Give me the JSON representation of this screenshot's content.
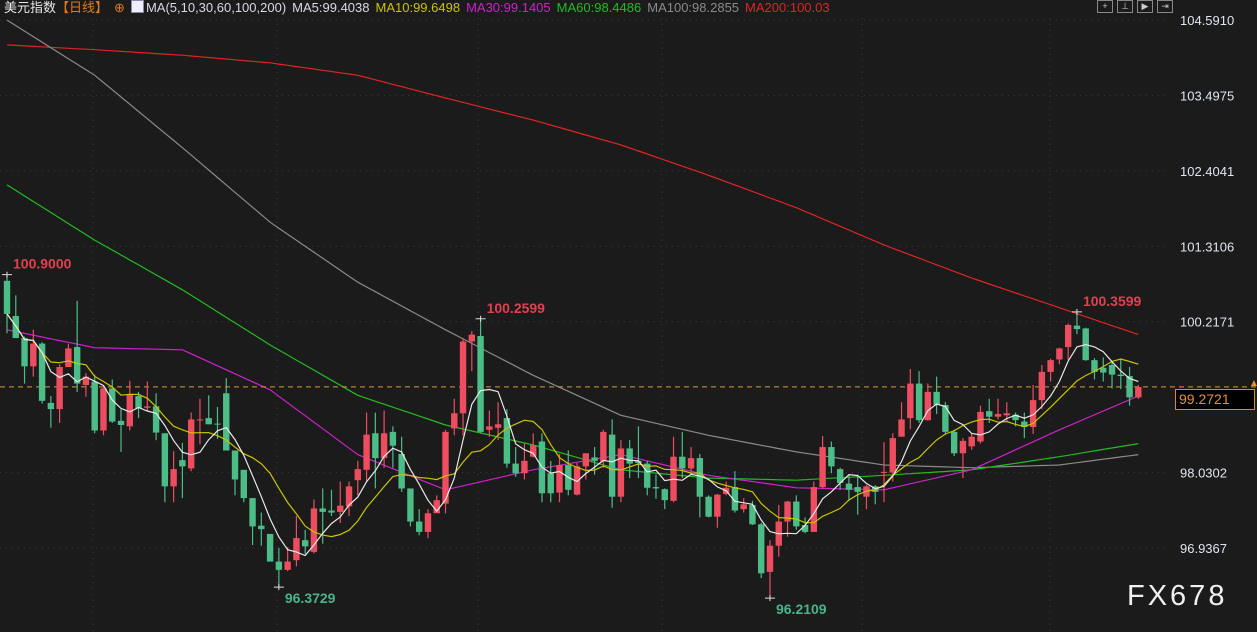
{
  "header": {
    "title": "美元指数",
    "period": "【日线】",
    "ma_params": "MA(5,10,30,60,100,200)",
    "ma5": "MA5:99.4038",
    "ma10": "MA10:99.6498",
    "ma30": "MA30:99.1405",
    "ma60": "MA60:98.4486",
    "ma100": "MA100:98.2855",
    "ma200": "MA200:100.03",
    "icons": [
      "crosshair-icon",
      "zoom-fit-icon",
      "play-icon",
      "jump-end-icon"
    ]
  },
  "colors": {
    "background": "#1b1b1b",
    "up": "#ee4d5f",
    "down": "#4dbd88",
    "ma5": "#e8e8e8",
    "ma10": "#c9c400",
    "ma30": "#cc22cc",
    "ma60": "#22bb22",
    "ma100": "#8a8a8a",
    "ma200": "#e02424",
    "current_price": "#e3922e"
  },
  "watermark": "FX678",
  "chart_data": {
    "type": "candlestick",
    "y_ticks": [
      "104.5910",
      "103.4975",
      "102.4041",
      "101.3106",
      "100.2171",
      "98.0302",
      "96.9367"
    ],
    "ylim": [
      96.0,
      104.8
    ],
    "grid": true,
    "current_price": "99.2721",
    "annotations": [
      {
        "label": "100.9000",
        "index": 0,
        "kind": "high"
      },
      {
        "label": "96.3729",
        "index": 31,
        "kind": "low"
      },
      {
        "label": "100.2599",
        "index": 54,
        "kind": "high"
      },
      {
        "label": "96.2109",
        "index": 87,
        "kind": "low"
      },
      {
        "label": "100.3599",
        "index": 122,
        "kind": "high"
      }
    ],
    "candles_ohlc": [
      [
        100.81,
        100.9,
        100.05,
        100.33
      ],
      [
        100.3,
        100.6,
        99.98,
        99.98
      ],
      [
        99.98,
        100.0,
        99.32,
        99.57
      ],
      [
        99.57,
        100.1,
        99.42,
        99.9
      ],
      [
        99.9,
        99.92,
        99.03,
        99.07
      ],
      [
        99.04,
        99.14,
        98.68,
        98.95
      ],
      [
        98.95,
        99.6,
        98.75,
        99.56
      ],
      [
        99.56,
        99.9,
        99.56,
        99.83
      ],
      [
        99.85,
        100.52,
        99.2,
        99.32
      ],
      [
        99.3,
        99.47,
        99.13,
        99.42
      ],
      [
        99.35,
        99.45,
        98.6,
        98.64
      ],
      [
        98.64,
        99.28,
        98.57,
        99.25
      ],
      [
        99.25,
        99.38,
        98.75,
        98.77
      ],
      [
        98.78,
        98.95,
        98.33,
        98.72
      ],
      [
        98.7,
        99.36,
        98.64,
        99.17
      ],
      [
        99.14,
        99.2,
        98.82,
        98.96
      ],
      [
        98.97,
        99.35,
        98.93,
        98.99
      ],
      [
        98.99,
        99.18,
        98.5,
        98.61
      ],
      [
        98.6,
        98.6,
        97.6,
        97.83
      ],
      [
        97.83,
        98.34,
        97.6,
        98.08
      ],
      [
        98.21,
        98.46,
        97.66,
        98.12
      ],
      [
        98.09,
        98.9,
        98.05,
        98.8
      ],
      [
        98.79,
        99.1,
        98.44,
        98.8
      ],
      [
        98.82,
        99.15,
        98.73,
        98.73
      ],
      [
        98.74,
        98.98,
        98.52,
        98.73
      ],
      [
        99.18,
        99.4,
        98.35,
        98.35
      ],
      [
        98.35,
        98.35,
        97.7,
        97.93
      ],
      [
        98.07,
        98.07,
        97.6,
        97.66
      ],
      [
        97.66,
        97.66,
        96.98,
        97.25
      ],
      [
        97.26,
        97.45,
        96.97,
        97.21
      ],
      [
        97.14,
        97.14,
        96.74,
        96.74
      ],
      [
        96.74,
        96.94,
        96.37,
        96.62
      ],
      [
        96.62,
        96.95,
        96.6,
        96.74
      ],
      [
        96.76,
        97.4,
        96.67,
        97.08
      ],
      [
        97.05,
        97.2,
        96.85,
        96.96
      ],
      [
        96.88,
        97.64,
        96.86,
        97.51
      ],
      [
        97.51,
        97.8,
        97.0,
        97.46
      ],
      [
        97.48,
        97.78,
        97.4,
        97.45
      ],
      [
        97.46,
        97.9,
        97.3,
        97.55
      ],
      [
        97.54,
        97.9,
        97.4,
        97.83
      ],
      [
        97.92,
        98.2,
        97.7,
        98.08
      ],
      [
        98.07,
        98.9,
        97.9,
        98.58
      ],
      [
        98.6,
        98.9,
        97.8,
        98.24
      ],
      [
        98.24,
        98.93,
        98.1,
        98.6
      ],
      [
        98.62,
        98.7,
        98.1,
        98.42
      ],
      [
        98.3,
        98.55,
        97.75,
        97.8
      ],
      [
        97.8,
        97.8,
        97.25,
        97.32
      ],
      [
        97.32,
        97.5,
        97.12,
        97.17
      ],
      [
        97.17,
        97.5,
        97.08,
        97.44
      ],
      [
        97.44,
        97.7,
        97.45,
        97.63
      ],
      [
        97.58,
        98.65,
        97.44,
        98.62
      ],
      [
        98.67,
        99.1,
        98.57,
        98.89
      ],
      [
        98.89,
        99.98,
        98.57,
        99.93
      ],
      [
        99.93,
        100.08,
        99.5,
        100.03
      ],
      [
        100.01,
        100.26,
        98.6,
        98.62
      ],
      [
        98.65,
        98.93,
        98.55,
        98.7
      ],
      [
        98.68,
        99.05,
        98.5,
        98.73
      ],
      [
        98.82,
        98.95,
        98.1,
        98.16
      ],
      [
        98.16,
        98.4,
        97.97,
        98.02
      ],
      [
        98.02,
        98.45,
        97.93,
        98.2
      ],
      [
        98.26,
        98.6,
        98.25,
        98.43
      ],
      [
        98.48,
        98.6,
        97.6,
        97.73
      ],
      [
        98.02,
        98.2,
        97.6,
        97.73
      ],
      [
        97.74,
        98.3,
        97.6,
        98.14
      ],
      [
        98.14,
        98.35,
        97.7,
        97.78
      ],
      [
        97.71,
        98.17,
        97.7,
        98.12
      ],
      [
        98.12,
        98.3,
        97.93,
        98.31
      ],
      [
        98.25,
        98.4,
        98.0,
        98.2
      ],
      [
        98.19,
        98.65,
        98.1,
        98.62
      ],
      [
        98.58,
        98.8,
        97.52,
        97.68
      ],
      [
        97.68,
        98.5,
        97.6,
        98.38
      ],
      [
        98.38,
        98.5,
        97.95,
        98.16
      ],
      [
        98.2,
        98.7,
        97.95,
        98.17
      ],
      [
        98.16,
        98.2,
        97.7,
        97.81
      ],
      [
        97.82,
        98.0,
        97.65,
        97.8
      ],
      [
        97.79,
        97.8,
        97.5,
        97.63
      ],
      [
        97.62,
        98.55,
        97.6,
        98.26
      ],
      [
        98.26,
        98.62,
        97.95,
        98.09
      ],
      [
        98.09,
        98.4,
        98.0,
        98.24
      ],
      [
        98.24,
        98.3,
        97.38,
        97.68
      ],
      [
        97.68,
        97.7,
        97.38,
        97.39
      ],
      [
        97.39,
        97.72,
        97.23,
        97.71
      ],
      [
        97.72,
        97.9,
        97.7,
        97.81
      ],
      [
        97.82,
        98.05,
        97.45,
        97.48
      ],
      [
        97.5,
        97.66,
        97.45,
        97.57
      ],
      [
        97.56,
        97.62,
        97.27,
        97.28
      ],
      [
        97.28,
        97.3,
        96.5,
        96.57
      ],
      [
        96.59,
        97.05,
        96.21,
        96.97
      ],
      [
        96.97,
        97.56,
        96.81,
        97.32
      ],
      [
        97.32,
        97.62,
        97.1,
        97.61
      ],
      [
        97.61,
        97.7,
        97.2,
        97.25
      ],
      [
        97.27,
        97.38,
        97.15,
        97.17
      ],
      [
        97.17,
        97.9,
        97.17,
        97.82
      ],
      [
        97.82,
        98.56,
        97.8,
        98.4
      ],
      [
        98.4,
        98.48,
        98.02,
        98.12
      ],
      [
        98.08,
        98.1,
        97.78,
        97.88
      ],
      [
        97.87,
        98.0,
        97.62,
        97.78
      ],
      [
        97.82,
        98.0,
        97.42,
        97.75
      ],
      [
        97.68,
        97.85,
        97.5,
        97.83
      ],
      [
        97.83,
        97.85,
        97.57,
        97.75
      ],
      [
        98.03,
        98.47,
        97.6,
        98.04
      ],
      [
        98.03,
        98.6,
        97.9,
        98.53
      ],
      [
        98.55,
        99.05,
        98.55,
        98.8
      ],
      [
        98.82,
        99.53,
        98.66,
        99.32
      ],
      [
        99.32,
        99.5,
        98.75,
        98.79
      ],
      [
        98.79,
        99.32,
        98.78,
        99.2
      ],
      [
        99.2,
        99.42,
        98.88,
        99.01
      ],
      [
        99.01,
        99.05,
        98.58,
        98.62
      ],
      [
        98.62,
        98.65,
        98.27,
        98.31
      ],
      [
        98.31,
        98.53,
        97.95,
        98.49
      ],
      [
        98.41,
        98.6,
        98.36,
        98.55
      ],
      [
        98.48,
        99.0,
        98.45,
        98.91
      ],
      [
        98.92,
        99.1,
        98.75,
        98.84
      ],
      [
        98.84,
        99.1,
        98.8,
        98.88
      ],
      [
        98.86,
        99.05,
        98.77,
        98.89
      ],
      [
        98.87,
        98.9,
        98.7,
        98.79
      ],
      [
        98.77,
        98.9,
        98.53,
        98.69
      ],
      [
        98.69,
        99.3,
        98.59,
        99.08
      ],
      [
        99.08,
        99.59,
        98.95,
        99.49
      ],
      [
        99.49,
        99.68,
        99.35,
        99.66
      ],
      [
        99.67,
        99.84,
        99.6,
        99.83
      ],
      [
        99.85,
        100.19,
        99.66,
        100.17
      ],
      [
        100.16,
        100.36,
        100.04,
        100.11
      ],
      [
        100.12,
        100.13,
        99.65,
        99.66
      ],
      [
        99.66,
        99.69,
        99.38,
        99.49
      ],
      [
        99.55,
        99.7,
        99.35,
        99.48
      ],
      [
        99.59,
        99.63,
        99.25,
        99.45
      ],
      [
        99.45,
        99.68,
        99.24,
        99.43
      ],
      [
        99.43,
        99.56,
        99.0,
        99.12
      ],
      [
        99.12,
        99.3,
        99.1,
        99.27
      ]
    ],
    "ma_series_sampled": {
      "index": [
        0,
        10,
        20,
        30,
        40,
        50,
        60,
        70,
        80,
        90,
        100,
        110,
        120,
        129
      ],
      "ma30": [
        100.1,
        99.84,
        99.81,
        99.23,
        98.29,
        97.78,
        98.07,
        98.29,
        97.99,
        97.81,
        97.78,
        98.07,
        98.65,
        99.14
      ],
      "ma60": [
        102.2,
        101.4,
        100.68,
        99.88,
        99.15,
        98.72,
        98.43,
        98.07,
        97.95,
        97.92,
        97.99,
        98.07,
        98.26,
        98.45
      ],
      "ma100": [
        104.59,
        103.79,
        102.74,
        101.66,
        100.79,
        100.1,
        99.44,
        98.86,
        98.57,
        98.33,
        98.14,
        98.1,
        98.14,
        98.29
      ],
      "ma200": [
        104.23,
        104.16,
        104.08,
        103.97,
        103.79,
        103.46,
        103.14,
        102.78,
        102.34,
        101.87,
        101.33,
        100.85,
        100.42,
        100.03
      ]
    }
  }
}
